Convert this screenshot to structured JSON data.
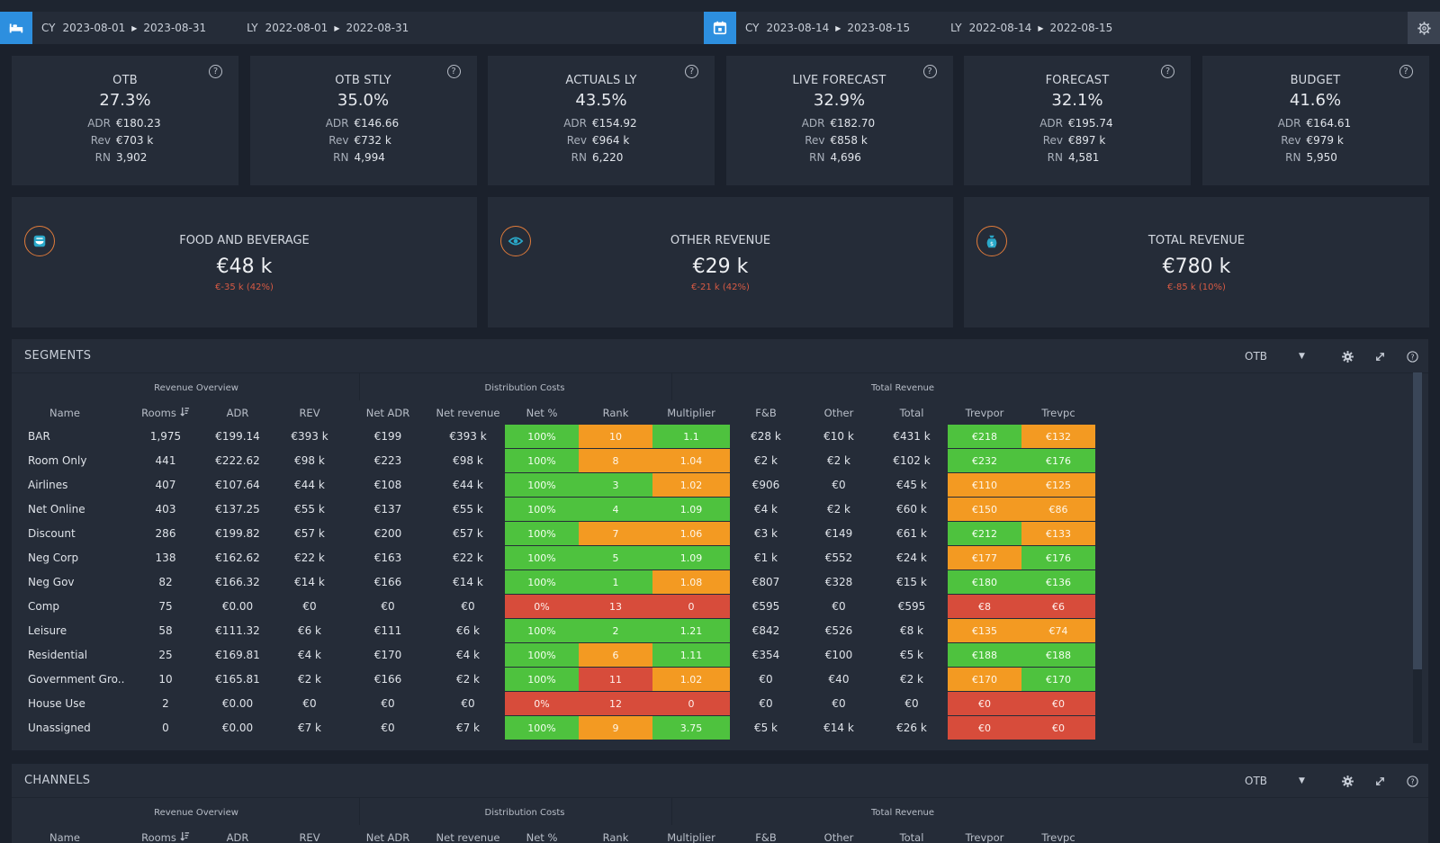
{
  "datebar": {
    "left": {
      "cy_label": "CY",
      "cy_from": "2023-08-01",
      "cy_to": "2023-08-31",
      "ly_label": "LY",
      "ly_from": "2022-08-01",
      "ly_to": "2022-08-31",
      "icon": "bed-icon"
    },
    "right": {
      "cy_label": "CY",
      "cy_from": "2023-08-14",
      "cy_to": "2023-08-15",
      "ly_label": "LY",
      "ly_from": "2022-08-14",
      "ly_to": "2022-08-15",
      "icon": "calendar-icon"
    },
    "accent": "#2d8fdf"
  },
  "kpis": [
    {
      "title": "OTB",
      "value": "27.3%",
      "adr_label": "ADR",
      "adr": "€180.23",
      "rev_label": "Rev",
      "rev": "€703 k",
      "rn_label": "RN",
      "rn": "3,902"
    },
    {
      "title": "OTB STLY",
      "value": "35.0%",
      "adr_label": "ADR",
      "adr": "€146.66",
      "rev_label": "Rev",
      "rev": "€732 k",
      "rn_label": "RN",
      "rn": "4,994"
    },
    {
      "title": "ACTUALS LY",
      "value": "43.5%",
      "adr_label": "ADR",
      "adr": "€154.92",
      "rev_label": "Rev",
      "rev": "€964 k",
      "rn_label": "RN",
      "rn": "6,220"
    },
    {
      "title": "LIVE FORECAST",
      "value": "32.9%",
      "adr_label": "ADR",
      "adr": "€182.70",
      "rev_label": "Rev",
      "rev": "€858 k",
      "rn_label": "RN",
      "rn": "4,696"
    },
    {
      "title": "FORECAST",
      "value": "32.1%",
      "adr_label": "ADR",
      "adr": "€195.74",
      "rev_label": "Rev",
      "rev": "€897 k",
      "rn_label": "RN",
      "rn": "4,581"
    },
    {
      "title": "BUDGET",
      "value": "41.6%",
      "adr_label": "ADR",
      "adr": "€164.61",
      "rev_label": "Rev",
      "rev": "€979 k",
      "rn_label": "RN",
      "rn": "5,950"
    }
  ],
  "help_glyph": "?",
  "revenue_cards": [
    {
      "title": "FOOD AND BEVERAGE",
      "value": "€48 k",
      "delta": "€-35 k (42%)",
      "icon": "food-bowl-icon"
    },
    {
      "title": "OTHER REVENUE",
      "value": "€29 k",
      "delta": "€-21 k (42%)",
      "icon": "eye-icon"
    },
    {
      "title": "TOTAL REVENUE",
      "value": "€780 k",
      "delta": "€-85 k (10%)",
      "icon": "money-bag-icon"
    }
  ],
  "segments": {
    "title": "SEGMENTS",
    "selector": "OTB",
    "groups": {
      "revenue_overview": "Revenue Overview",
      "distribution_costs": "Distribution Costs",
      "total_revenue": "Total Revenue"
    },
    "columns": [
      "Name",
      "Rooms",
      "ADR",
      "REV",
      "Net ADR",
      "Net revenue",
      "Net %",
      "Rank",
      "Multiplier",
      "F&B",
      "Other",
      "Total",
      "Trevpor",
      "Trevpc"
    ],
    "rows": [
      {
        "cells": [
          "BAR",
          "1,975",
          "€199.14",
          "€393 k",
          "€199",
          "€393 k",
          "100%",
          "10",
          "1.1",
          "€28 k",
          "€10 k",
          "€431 k",
          "€218",
          "€132"
        ],
        "colors": [
          "g",
          "o",
          "g",
          "g",
          "o"
        ]
      },
      {
        "cells": [
          "Room Only",
          "441",
          "€222.62",
          "€98 k",
          "€223",
          "€98 k",
          "100%",
          "8",
          "1.04",
          "€2 k",
          "€2 k",
          "€102 k",
          "€232",
          "€176"
        ],
        "colors": [
          "g",
          "o",
          "o",
          "g",
          "g"
        ]
      },
      {
        "cells": [
          "Airlines",
          "407",
          "€107.64",
          "€44 k",
          "€108",
          "€44 k",
          "100%",
          "3",
          "1.02",
          "€906",
          "€0",
          "€45 k",
          "€110",
          "€125"
        ],
        "colors": [
          "g",
          "g",
          "o",
          "o",
          "o"
        ]
      },
      {
        "cells": [
          "Net Online",
          "403",
          "€137.25",
          "€55 k",
          "€137",
          "€55 k",
          "100%",
          "4",
          "1.09",
          "€4 k",
          "€2 k",
          "€60 k",
          "€150",
          "€86"
        ],
        "colors": [
          "g",
          "g",
          "g",
          "o",
          "o"
        ]
      },
      {
        "cells": [
          "Discount",
          "286",
          "€199.82",
          "€57 k",
          "€200",
          "€57 k",
          "100%",
          "7",
          "1.06",
          "€3 k",
          "€149",
          "€61 k",
          "€212",
          "€133"
        ],
        "colors": [
          "g",
          "o",
          "o",
          "g",
          "o"
        ]
      },
      {
        "cells": [
          "Neg Corp",
          "138",
          "€162.62",
          "€22 k",
          "€163",
          "€22 k",
          "100%",
          "5",
          "1.09",
          "€1 k",
          "€552",
          "€24 k",
          "€177",
          "€176"
        ],
        "colors": [
          "g",
          "g",
          "g",
          "o",
          "g"
        ]
      },
      {
        "cells": [
          "Neg Gov",
          "82",
          "€166.32",
          "€14 k",
          "€166",
          "€14 k",
          "100%",
          "1",
          "1.08",
          "€807",
          "€328",
          "€15 k",
          "€180",
          "€136"
        ],
        "colors": [
          "g",
          "g",
          "o",
          "g",
          "g"
        ]
      },
      {
        "cells": [
          "Comp",
          "75",
          "€0.00",
          "€0",
          "€0",
          "€0",
          "0%",
          "13",
          "0",
          "€595",
          "€0",
          "€595",
          "€8",
          "€6"
        ],
        "colors": [
          "r",
          "r",
          "r",
          "r",
          "r"
        ]
      },
      {
        "cells": [
          "Leisure",
          "58",
          "€111.32",
          "€6 k",
          "€111",
          "€6 k",
          "100%",
          "2",
          "1.21",
          "€842",
          "€526",
          "€8 k",
          "€135",
          "€74"
        ],
        "colors": [
          "g",
          "g",
          "g",
          "o",
          "o"
        ]
      },
      {
        "cells": [
          "Residential",
          "25",
          "€169.81",
          "€4 k",
          "€170",
          "€4 k",
          "100%",
          "6",
          "1.11",
          "€354",
          "€100",
          "€5 k",
          "€188",
          "€188"
        ],
        "colors": [
          "g",
          "o",
          "g",
          "g",
          "g"
        ]
      },
      {
        "cells": [
          "Government Gro..",
          "10",
          "€165.81",
          "€2 k",
          "€166",
          "€2 k",
          "100%",
          "11",
          "1.02",
          "€0",
          "€40",
          "€2 k",
          "€170",
          "€170"
        ],
        "colors": [
          "g",
          "r",
          "o",
          "o",
          "g"
        ]
      },
      {
        "cells": [
          "House Use",
          "2",
          "€0.00",
          "€0",
          "€0",
          "€0",
          "0%",
          "12",
          "0",
          "€0",
          "€0",
          "€0",
          "€0",
          "€0"
        ],
        "colors": [
          "r",
          "r",
          "r",
          "r",
          "r"
        ]
      },
      {
        "cells": [
          "Unassigned",
          "0",
          "€0.00",
          "€7 k",
          "€0",
          "€7 k",
          "100%",
          "9",
          "3.75",
          "€5 k",
          "€14 k",
          "€26 k",
          "€0",
          "€0"
        ],
        "colors": [
          "g",
          "o",
          "g",
          "r",
          "r"
        ]
      }
    ]
  },
  "channels": {
    "title": "CHANNELS",
    "selector": "OTB",
    "groups": {
      "revenue_overview": "Revenue Overview",
      "distribution_costs": "Distribution Costs",
      "total_revenue": "Total Revenue"
    },
    "columns": [
      "Name",
      "Rooms",
      "ADR",
      "REV",
      "Net ADR",
      "Net revenue",
      "Net %",
      "Rank",
      "Multiplier",
      "F&B",
      "Other",
      "Total",
      "Trevpor",
      "Trevpc"
    ]
  },
  "colors": {
    "green": "#4ec23e",
    "orange": "#f39a22",
    "red": "#d74c3b",
    "card_bg": "#252c38",
    "page_bg": "#1b212c",
    "icon_accent": "#e07b3a"
  }
}
